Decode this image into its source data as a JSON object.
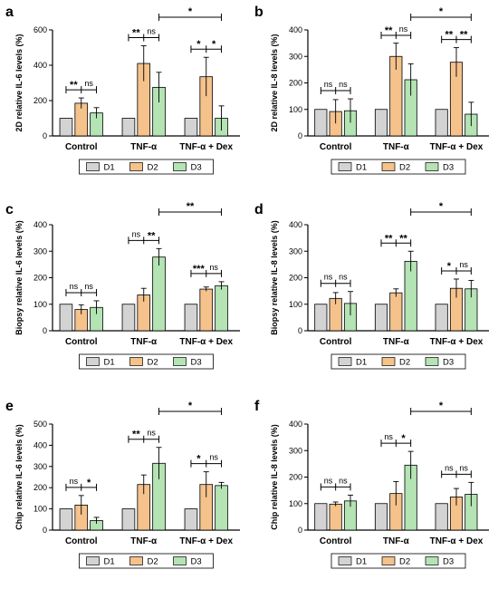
{
  "colors": {
    "D1": "#d3d3d3",
    "D2": "#f5c28c",
    "D3": "#b4e3b4",
    "stroke": "#000000"
  },
  "legend": [
    "D1",
    "D2",
    "D3"
  ],
  "chart_data": [
    {
      "type": "bar",
      "panel_label": "a",
      "ylabel": "2D relative IL-6  levels (%)",
      "ylim": [
        0,
        600
      ],
      "yticks": [
        "0",
        "200",
        "400",
        "600"
      ],
      "categories": [
        "Control",
        "TNF-α",
        "TNF-α + Dex"
      ],
      "series": [
        {
          "name": "D1",
          "values": [
            100,
            100,
            100
          ],
          "errors": [
            0,
            0,
            0
          ]
        },
        {
          "name": "D2",
          "values": [
            185,
            410,
            335
          ],
          "errors": [
            30,
            100,
            110
          ]
        },
        {
          "name": "D3",
          "values": [
            130,
            275,
            100
          ],
          "errors": [
            30,
            85,
            70
          ]
        }
      ],
      "significance": [
        {
          "group": 0,
          "labels": [
            "**",
            "ns"
          ]
        },
        {
          "group": 1,
          "labels": [
            "**",
            "ns"
          ]
        },
        {
          "group": 2,
          "labels": [
            "*",
            "*"
          ]
        },
        {
          "between": [
            1,
            2
          ],
          "label": "*"
        }
      ]
    },
    {
      "type": "bar",
      "panel_label": "b",
      "ylabel": "2D relative IL-8  levels (%)",
      "ylim": [
        0,
        400
      ],
      "yticks": [
        "0",
        "100",
        "200",
        "300",
        "400"
      ],
      "categories": [
        "Control",
        "TNF-α",
        "TNF-α + Dex"
      ],
      "series": [
        {
          "name": "D1",
          "values": [
            100,
            100,
            100
          ],
          "errors": [
            0,
            0,
            0
          ]
        },
        {
          "name": "D2",
          "values": [
            92,
            300,
            278
          ],
          "errors": [
            45,
            50,
            55
          ]
        },
        {
          "name": "D3",
          "values": [
            95,
            212,
            82
          ],
          "errors": [
            45,
            60,
            45
          ]
        }
      ],
      "significance": [
        {
          "group": 0,
          "labels": [
            "ns",
            "ns"
          ]
        },
        {
          "group": 1,
          "labels": [
            "**",
            "ns"
          ]
        },
        {
          "group": 2,
          "labels": [
            "**",
            "**"
          ]
        },
        {
          "between": [
            1,
            2
          ],
          "label": "*"
        }
      ]
    },
    {
      "type": "bar",
      "panel_label": "c",
      "ylabel": "Biopsy relative IL-6  levels (%)",
      "ylim": [
        0,
        400
      ],
      "yticks": [
        "0",
        "100",
        "200",
        "300",
        "400"
      ],
      "categories": [
        "Control",
        "TNF-α",
        "TNF-α + Dex"
      ],
      "series": [
        {
          "name": "D1",
          "values": [
            100,
            100,
            100
          ],
          "errors": [
            0,
            0,
            0
          ]
        },
        {
          "name": "D2",
          "values": [
            80,
            135,
            157
          ],
          "errors": [
            18,
            25,
            8
          ]
        },
        {
          "name": "D3",
          "values": [
            88,
            278,
            170
          ],
          "errors": [
            25,
            32,
            15
          ]
        }
      ],
      "significance": [
        {
          "group": 0,
          "labels": [
            "ns",
            "ns"
          ]
        },
        {
          "group": 1,
          "labels": [
            "ns",
            "**"
          ]
        },
        {
          "group": 2,
          "labels": [
            "***",
            "ns"
          ]
        },
        {
          "between": [
            1,
            2
          ],
          "label": "**"
        }
      ]
    },
    {
      "type": "bar",
      "panel_label": "d",
      "ylabel": "Biopsy relative IL-8  levels (%)",
      "ylim": [
        0,
        400
      ],
      "yticks": [
        "0",
        "100",
        "200",
        "300",
        "400"
      ],
      "categories": [
        "Control",
        "TNF-α",
        "TNF-α + Dex"
      ],
      "series": [
        {
          "name": "D1",
          "values": [
            100,
            100,
            100
          ],
          "errors": [
            0,
            0,
            0
          ]
        },
        {
          "name": "D2",
          "values": [
            122,
            143,
            160
          ],
          "errors": [
            22,
            15,
            35
          ]
        },
        {
          "name": "D3",
          "values": [
            103,
            262,
            158
          ],
          "errors": [
            45,
            38,
            32
          ]
        }
      ],
      "significance": [
        {
          "group": 0,
          "labels": [
            "ns",
            "ns"
          ]
        },
        {
          "group": 1,
          "labels": [
            "**",
            "**"
          ]
        },
        {
          "group": 2,
          "labels": [
            "*",
            "ns"
          ]
        },
        {
          "between": [
            1,
            2
          ],
          "label": "*"
        }
      ]
    },
    {
      "type": "bar",
      "panel_label": "e",
      "ylabel": "Chip relative IL-6  levels (%)",
      "ylim": [
        0,
        500
      ],
      "yticks": [
        "0",
        "100",
        "200",
        "300",
        "400",
        "500"
      ],
      "categories": [
        "Control",
        "TNF-α",
        "TNF-α + Dex"
      ],
      "series": [
        {
          "name": "D1",
          "values": [
            100,
            100,
            100
          ],
          "errors": [
            0,
            0,
            0
          ]
        },
        {
          "name": "D2",
          "values": [
            118,
            215,
            215
          ],
          "errors": [
            45,
            45,
            60
          ]
        },
        {
          "name": "D3",
          "values": [
            45,
            315,
            210
          ],
          "errors": [
            15,
            75,
            15
          ]
        }
      ],
      "significance": [
        {
          "group": 0,
          "labels": [
            "ns",
            "*"
          ]
        },
        {
          "group": 1,
          "labels": [
            "**",
            "ns"
          ]
        },
        {
          "group": 2,
          "labels": [
            "*",
            "ns"
          ]
        },
        {
          "between": [
            1,
            2
          ],
          "label": "*"
        }
      ]
    },
    {
      "type": "bar",
      "panel_label": "f",
      "ylabel": "Chip relative IL-8  levels (%)",
      "ylim": [
        0,
        400
      ],
      "yticks": [
        "0",
        "100",
        "200",
        "300",
        "400"
      ],
      "categories": [
        "Control",
        "TNF-α",
        "TNF-α + Dex"
      ],
      "series": [
        {
          "name": "D1",
          "values": [
            100,
            100,
            100
          ],
          "errors": [
            0,
            0,
            0
          ]
        },
        {
          "name": "D2",
          "values": [
            98,
            138,
            125
          ],
          "errors": [
            8,
            45,
            32
          ]
        },
        {
          "name": "D3",
          "values": [
            110,
            245,
            135
          ],
          "errors": [
            22,
            52,
            45
          ]
        }
      ],
      "significance": [
        {
          "group": 0,
          "labels": [
            "ns",
            "ns"
          ]
        },
        {
          "group": 1,
          "labels": [
            "ns",
            "*"
          ]
        },
        {
          "group": 2,
          "labels": [
            "ns",
            "ns"
          ]
        },
        {
          "between": [
            1,
            2
          ],
          "label": "*"
        }
      ]
    }
  ]
}
